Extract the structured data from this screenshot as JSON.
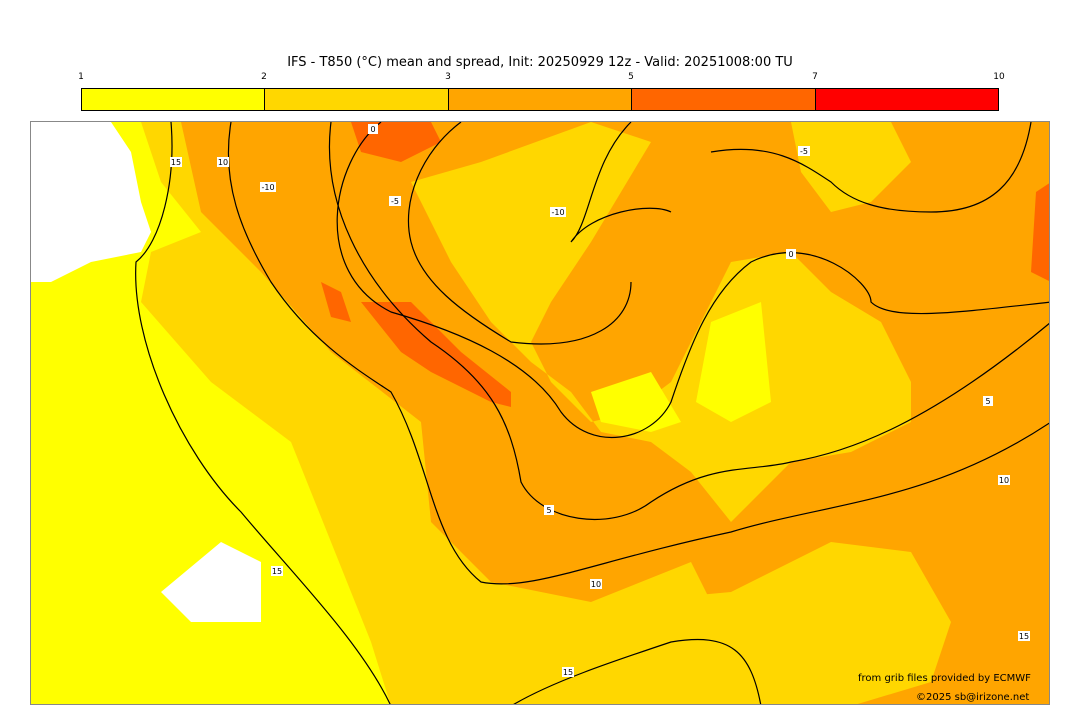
{
  "title": "IFS - T850 (°C) mean and spread, Init: 20250929 12z - Valid: 20251008:00 TU",
  "colorbar": {
    "ticks": [
      "1",
      "2",
      "3",
      "5",
      "7",
      "10"
    ],
    "colors": [
      "#ffff00",
      "#ffd700",
      "#ffa500",
      "#ff6600",
      "#ff0000"
    ]
  },
  "map": {
    "contour_labels": [
      "15",
      "10",
      "-10",
      "0",
      "-5",
      "-10",
      "-5",
      "0",
      "5",
      "10",
      "5",
      "10",
      "15",
      "15",
      "15"
    ],
    "land_color": "#ffffff"
  },
  "credits": {
    "source": "from grib files provided by ECMWF",
    "copyright": "©2025 sb@irizone.net"
  }
}
